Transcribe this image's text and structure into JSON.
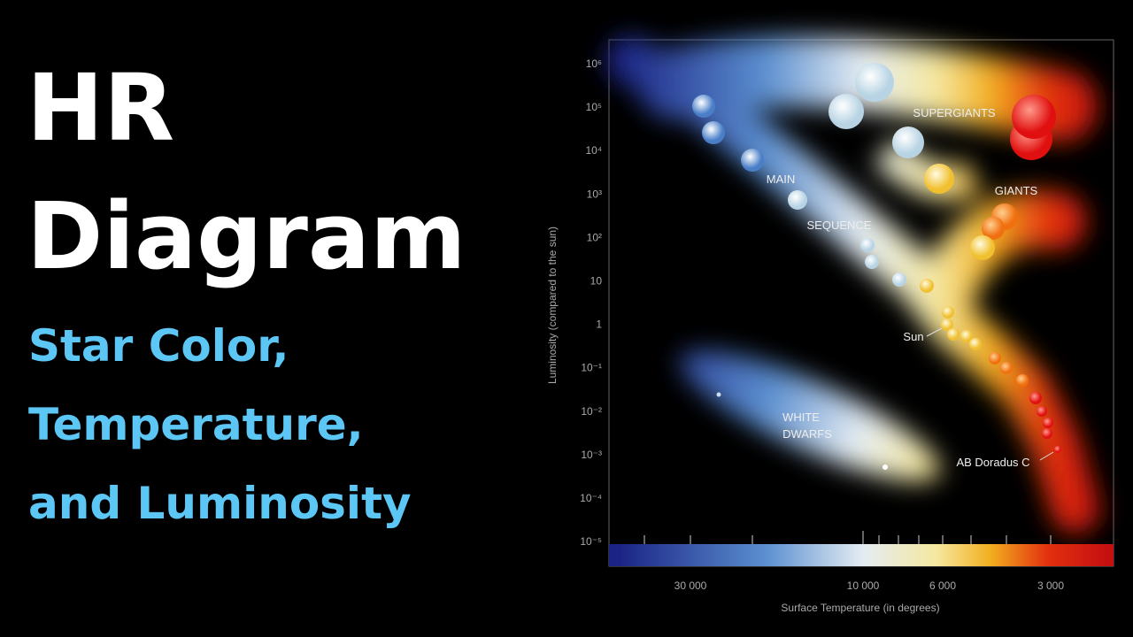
{
  "heading": {
    "title_lines": [
      "HR",
      "Diagram"
    ],
    "subtitle_lines": [
      "Star Color,",
      "Temperature,",
      "and Luminosity"
    ]
  },
  "diagram": {
    "y_axis_title": "Luminosity (compared to the sun)",
    "x_axis_title": "Surface Temperature (in degrees)",
    "y_tick_labels": [
      "10⁶",
      "10⁵",
      "10⁴",
      "10³",
      "10²",
      "10",
      "1",
      "10⁻¹",
      "10⁻²",
      "10⁻³",
      "10⁻⁴",
      "10⁻⁵"
    ],
    "x_tick_labels": [
      "30 000",
      "10 000",
      "6 000",
      "3 000"
    ],
    "region_labels": {
      "supergiants": "SUPERGIANTS",
      "giants": "GIANTS",
      "main": "MAIN",
      "sequence": "SEQUENCE",
      "white": "WHITE",
      "dwarfs": "DWARFS"
    },
    "star_labels": {
      "sun": "Sun",
      "ab_doradus": "AB Doradus C"
    }
  }
}
